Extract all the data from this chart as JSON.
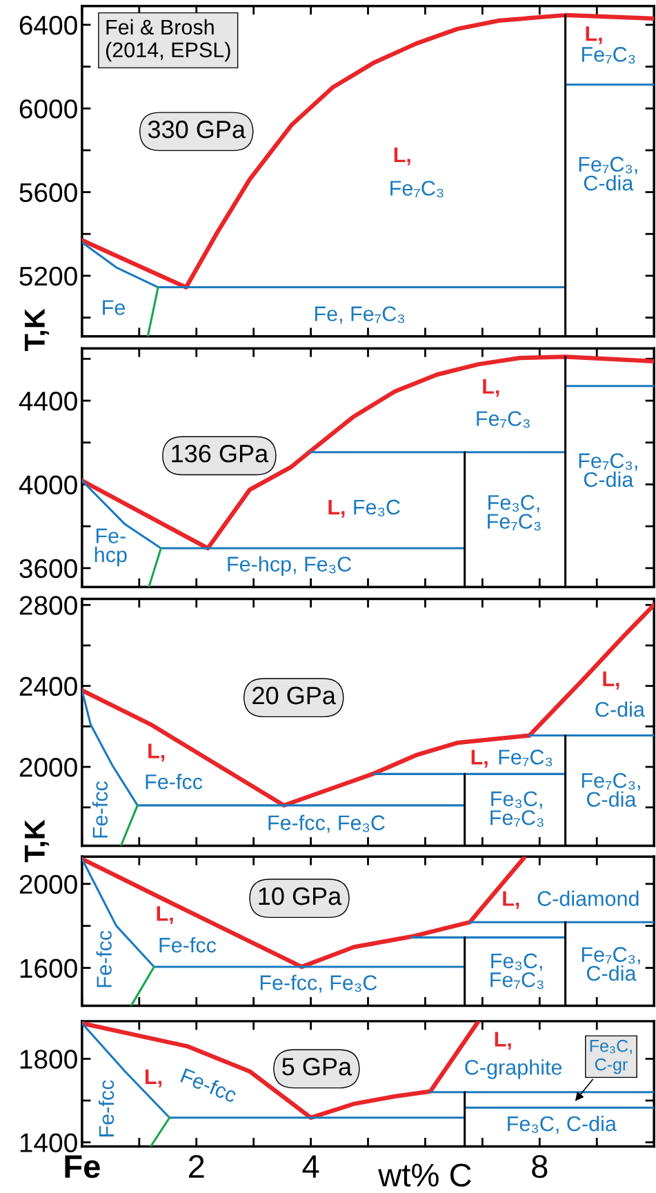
{
  "chart_data": [
    {
      "type": "line",
      "title": "330 GPa",
      "ylabel": "T,K",
      "xlim": [
        0,
        10
      ],
      "ylim": [
        4910,
        6490
      ],
      "tick_labels": "y",
      "grid": false,
      "legend": false,
      "marker": "none",
      "line_style": "solid",
      "xticks": [
        {
          "value": 0,
          "label": null
        },
        {
          "value": 1,
          "label": null
        },
        {
          "value": 2,
          "label": null
        },
        {
          "value": 3,
          "label": null
        },
        {
          "value": 4,
          "label": null
        },
        {
          "value": 5,
          "label": null
        },
        {
          "value": 6,
          "label": null
        },
        {
          "value": 7,
          "label": null
        },
        {
          "value": 8,
          "label": null
        },
        {
          "value": 9,
          "label": null
        }
      ],
      "yticks": [
        {
          "value": 5000,
          "label": null
        },
        5200,
        {
          "value": 5400,
          "label": null
        },
        5600,
        {
          "value": 5800,
          "label": null
        },
        6000,
        {
          "value": 6200,
          "label": null
        },
        6400
      ],
      "series": [
        {
          "color": "#e8262a",
          "x": [
            0,
            1.82,
            2.35,
            2.93,
            3.66,
            4.38,
            5.11,
            5.84,
            6.56,
            7.29,
            8.45,
            10
          ],
          "values": [
            5370,
            5145,
            5400,
            5660,
            5920,
            6100,
            6220,
            6310,
            6380,
            6420,
            6446,
            6430
          ]
        },
        {
          "color": "#1a7abf",
          "x": [
            0,
            0.6,
            1.33,
            8.45
          ],
          "values": [
            5360,
            5240,
            5145,
            5145
          ]
        },
        {
          "color": "#1aa64a",
          "x": [
            1.33,
            1.15
          ],
          "values": [
            5145,
            4910
          ]
        },
        {
          "color": "#1a7abf",
          "x": [
            8.45,
            10
          ],
          "values": [
            6114,
            6114
          ]
        },
        {
          "color": "#000000",
          "x": [
            8.45,
            8.45
          ],
          "values": [
            4910,
            6446
          ]
        }
      ],
      "annotations": [
        "Fei & Brosh\n(2014, EPSL)",
        "L,",
        "Fe₇C₃",
        "L,",
        "Fe₇C₃",
        "Fe₇C₃,\nC-dia",
        "Fe",
        "Fe, Fe₇C₃"
      ]
    },
    {
      "type": "line",
      "title": "136 GPa",
      "xlim": [
        0,
        10
      ],
      "ylim": [
        3510,
        4650
      ],
      "tick_labels": "y",
      "grid": false,
      "legend": false,
      "marker": "none",
      "line_style": "solid",
      "xticks": [
        {
          "value": 0,
          "label": null
        },
        {
          "value": 1,
          "label": null
        },
        {
          "value": 2,
          "label": null
        },
        {
          "value": 3,
          "label": null
        },
        {
          "value": 4,
          "label": null
        },
        {
          "value": 5,
          "label": null
        },
        {
          "value": 6,
          "label": null
        },
        {
          "value": 7,
          "label": null
        },
        {
          "value": 8,
          "label": null
        },
        {
          "value": 9,
          "label": null
        }
      ],
      "yticks": [
        3600,
        {
          "value": 3800,
          "label": null
        },
        4000,
        {
          "value": 4200,
          "label": null
        },
        4400,
        {
          "value": 4600,
          "label": null
        }
      ],
      "series": [
        {
          "color": "#e8262a",
          "x": [
            0,
            2.2,
            2.93,
            3.66,
            4.0,
            4.75,
            5.47,
            6.2,
            6.93,
            7.65,
            8.45,
            10
          ],
          "values": [
            4018,
            3695,
            3974,
            4084,
            4160,
            4324,
            4444,
            4524,
            4574,
            4604,
            4610,
            4588
          ]
        },
        {
          "color": "#1a7abf",
          "x": [
            0,
            0.75,
            1.38,
            6.69
          ],
          "values": [
            4018,
            3810,
            3695,
            3695
          ]
        },
        {
          "color": "#1aa64a",
          "x": [
            1.38,
            1.17
          ],
          "values": [
            3695,
            3510
          ]
        },
        {
          "color": "#1a7abf",
          "x": [
            4.0,
            8.45
          ],
          "values": [
            4154,
            4154
          ]
        },
        {
          "color": "#1a7abf",
          "x": [
            8.45,
            10
          ],
          "values": [
            4470,
            4470
          ]
        },
        {
          "color": "#000000",
          "x": [
            6.69,
            6.69
          ],
          "values": [
            3510,
            4154
          ]
        },
        {
          "color": "#000000",
          "x": [
            8.45,
            8.45
          ],
          "values": [
            3510,
            4610
          ]
        }
      ],
      "annotations": [
        "L,",
        "Fe₇C₃",
        "L,",
        "Fe₃C",
        "Fe₃C,\nFe₇C₃",
        "Fe₇C₃,\nC-dia",
        "Fe-\nhcp",
        "Fe-hcp, Fe₃C"
      ]
    },
    {
      "type": "line",
      "title": "20 GPa",
      "ylabel": "T,K",
      "xlim": [
        0,
        10
      ],
      "ylim": [
        1610,
        2830
      ],
      "tick_labels": "y",
      "grid": false,
      "legend": false,
      "marker": "none",
      "line_style": "solid",
      "xticks": [
        {
          "value": 0,
          "label": null
        },
        {
          "value": 1,
          "label": null
        },
        {
          "value": 2,
          "label": null
        },
        {
          "value": 3,
          "label": null
        },
        {
          "value": 4,
          "label": null
        },
        {
          "value": 5,
          "label": null
        },
        {
          "value": 6,
          "label": null
        },
        {
          "value": 7,
          "label": null
        },
        {
          "value": 8,
          "label": null
        },
        {
          "value": 9,
          "label": null
        }
      ],
      "yticks": [
        {
          "value": 1800,
          "label": null
        },
        2000,
        {
          "value": 2200,
          "label": null
        },
        2400,
        {
          "value": 2600,
          "label": null
        },
        2800
      ],
      "series": [
        {
          "color": "#e8262a",
          "x": [
            0,
            1.2,
            3.53,
            5.11,
            5.84,
            6.56,
            7.82,
            8.74,
            9.47,
            10
          ],
          "values": [
            2378,
            2210,
            1810,
            1968,
            2058,
            2119,
            2155,
            2426,
            2646,
            2800
          ]
        },
        {
          "color": "#1a7abf",
          "x": [
            0,
            0.15,
            0.53,
            0.97,
            6.69
          ],
          "values": [
            2378,
            2210,
            2008,
            1810,
            1810
          ]
        },
        {
          "color": "#1aa64a",
          "x": [
            0.97,
            0.68
          ],
          "values": [
            1810,
            1610
          ]
        },
        {
          "color": "#1a7abf",
          "x": [
            5.11,
            8.45
          ],
          "values": [
            1965,
            1965
          ]
        },
        {
          "color": "#1a7abf",
          "x": [
            7.82,
            10
          ],
          "values": [
            2155,
            2155
          ]
        },
        {
          "color": "#000000",
          "x": [
            6.69,
            6.69
          ],
          "values": [
            1610,
            1965
          ]
        },
        {
          "color": "#000000",
          "x": [
            8.45,
            8.45
          ],
          "values": [
            1610,
            2155
          ]
        }
      ],
      "annotations": [
        "L,",
        "Fe-fcc",
        "Fe-fcc",
        "Fe-fcc, Fe₃C",
        "L,",
        "Fe₇C₃",
        "Fe₃C,\nFe₇C₃",
        "Fe₇C₃,\nC-dia",
        "L,",
        "C-dia"
      ]
    },
    {
      "type": "line",
      "title": "10 GPa",
      "xlim": [
        0,
        10
      ],
      "ylim": [
        1420,
        2130
      ],
      "tick_labels": "y",
      "grid": false,
      "legend": false,
      "marker": "none",
      "line_style": "solid",
      "xticks": [
        {
          "value": 0,
          "label": null
        },
        {
          "value": 1,
          "label": null
        },
        {
          "value": 2,
          "label": null
        },
        {
          "value": 3,
          "label": null
        },
        {
          "value": 4,
          "label": null
        },
        {
          "value": 5,
          "label": null
        },
        {
          "value": 6,
          "label": null
        },
        {
          "value": 7,
          "label": null
        },
        {
          "value": 8,
          "label": null
        },
        {
          "value": 9,
          "label": null
        }
      ],
      "yticks": [
        1600,
        {
          "value": 1800,
          "label": null
        },
        2000
      ],
      "series": [
        {
          "color": "#e8262a",
          "x": [
            0,
            1.48,
            3.84,
            4.75,
            5.76,
            6.78,
            7.73
          ],
          "values": [
            2119,
            1920,
            1605,
            1699,
            1749,
            1818,
            2125
          ]
        },
        {
          "color": "#1a7abf",
          "x": [
            0,
            0.6,
            1.26,
            6.69
          ],
          "values": [
            2119,
            1800,
            1605,
            1605
          ]
        },
        {
          "color": "#1aa64a",
          "x": [
            1.26,
            0.86
          ],
          "values": [
            1605,
            1420
          ]
        },
        {
          "color": "#1a7abf",
          "x": [
            5.76,
            8.45
          ],
          "values": [
            1745,
            1745
          ]
        },
        {
          "color": "#1a7abf",
          "x": [
            6.78,
            10
          ],
          "values": [
            1818,
            1818
          ]
        },
        {
          "color": "#000000",
          "x": [
            6.69,
            6.69
          ],
          "values": [
            1420,
            1745
          ]
        },
        {
          "color": "#000000",
          "x": [
            8.45,
            8.45
          ],
          "values": [
            1420,
            1818
          ]
        }
      ],
      "annotations": [
        "L,",
        "Fe-fcc",
        "Fe-fcc",
        "Fe-fcc, Fe₃C",
        "L,",
        "C-diamond",
        "Fe₃C,\nFe₇C₃",
        "Fe₇C₃,\nC-dia"
      ]
    },
    {
      "type": "line",
      "title": "5 GPa",
      "xlabel": "wt% C",
      "xlim": [
        0,
        10
      ],
      "ylim": [
        1380,
        1980
      ],
      "grid": false,
      "legend": false,
      "marker": "none",
      "line_style": "solid",
      "xticks": [
        {
          "value": 0,
          "label": "Fe"
        },
        {
          "value": 1,
          "label": null
        },
        2,
        {
          "value": 3,
          "label": null
        },
        4,
        {
          "value": 5,
          "label": null
        },
        {
          "value": 6,
          "label": null
        },
        {
          "value": 7,
          "label": null
        },
        8,
        {
          "value": 9,
          "label": null
        }
      ],
      "yticks": [
        1400,
        {
          "value": 1600,
          "label": null
        },
        1800
      ],
      "series": [
        {
          "color": "#e8262a",
          "x": [
            0,
            1.84,
            2.93,
            4.0,
            4.75,
            5.47,
            6.09,
            6.93
          ],
          "values": [
            1970,
            1860,
            1740,
            1518,
            1584,
            1620,
            1644,
            1980
          ]
        },
        {
          "color": "#1a7abf",
          "x": [
            0,
            0.75,
            1.53,
            6.69
          ],
          "values": [
            1970,
            1740,
            1518,
            1518
          ]
        },
        {
          "color": "#1aa64a",
          "x": [
            1.53,
            1.2
          ],
          "values": [
            1518,
            1380
          ]
        },
        {
          "color": "#1a7abf",
          "x": [
            6.09,
            10
          ],
          "values": [
            1640,
            1640
          ]
        },
        {
          "color": "#1a7abf",
          "x": [
            6.69,
            10
          ],
          "values": [
            1566,
            1566
          ]
        },
        {
          "color": "#000000",
          "x": [
            6.69,
            6.69
          ],
          "values": [
            1380,
            1640
          ]
        }
      ],
      "annotations": [
        "L,",
        "Fe-fcc",
        "Fe-fcc",
        "L,",
        "C-graphite",
        "Fe₃C, C-dia",
        "Fe₃C,\nC-gr"
      ]
    }
  ]
}
